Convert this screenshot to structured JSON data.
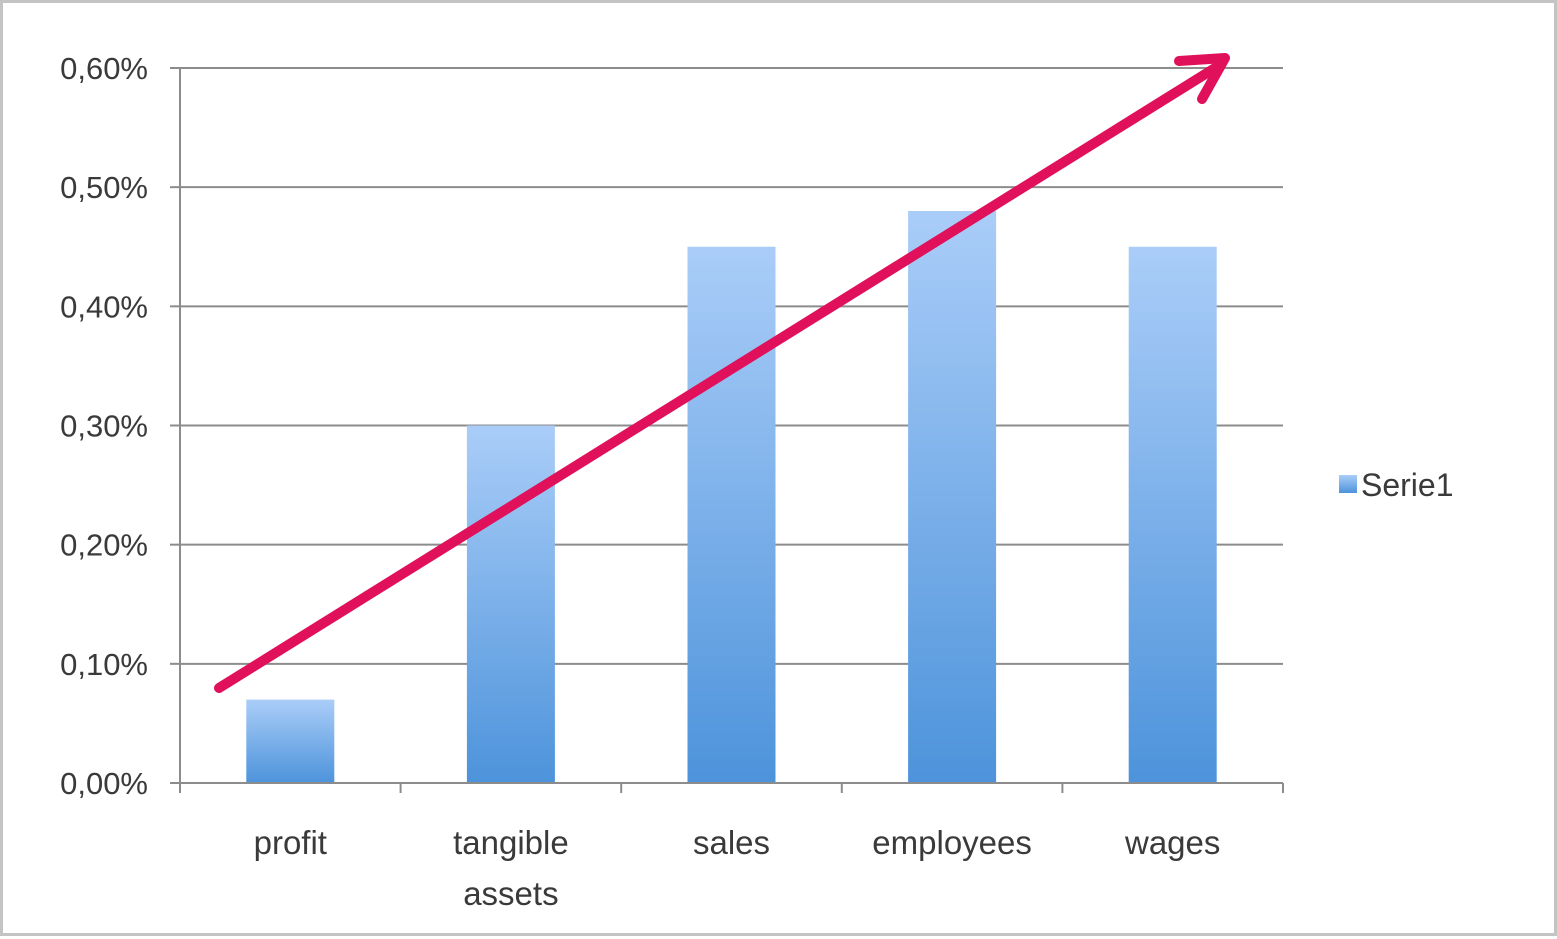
{
  "chart_data": {
    "type": "bar",
    "categories": [
      [
        "profit"
      ],
      [
        "tangible",
        "assets"
      ],
      [
        "sales"
      ],
      [
        "employees"
      ],
      [
        "wages"
      ]
    ],
    "series": [
      {
        "name": "Serie1",
        "values": [
          0.07,
          0.3,
          0.45,
          0.48,
          0.45
        ]
      }
    ],
    "ylim": [
      0,
      0.6
    ],
    "yticks": [
      0.0,
      0.1,
      0.2,
      0.3,
      0.4,
      0.5,
      0.6
    ],
    "ytick_labels": [
      "0,00%",
      "0,10%",
      "0,20%",
      "0,30%",
      "0,40%",
      "0,50%",
      "0,60%"
    ],
    "grid": true,
    "legend_position": "right",
    "annotations": [
      {
        "type": "arrow",
        "description": "upward trend arrow",
        "color": "#e0105a"
      }
    ],
    "colors": {
      "bar_top": "#aacdf8",
      "bar_bottom": "#4d93db",
      "grid": "#8c8c8c",
      "axis": "#8c8c8c",
      "arrow": "#e0105a"
    }
  }
}
